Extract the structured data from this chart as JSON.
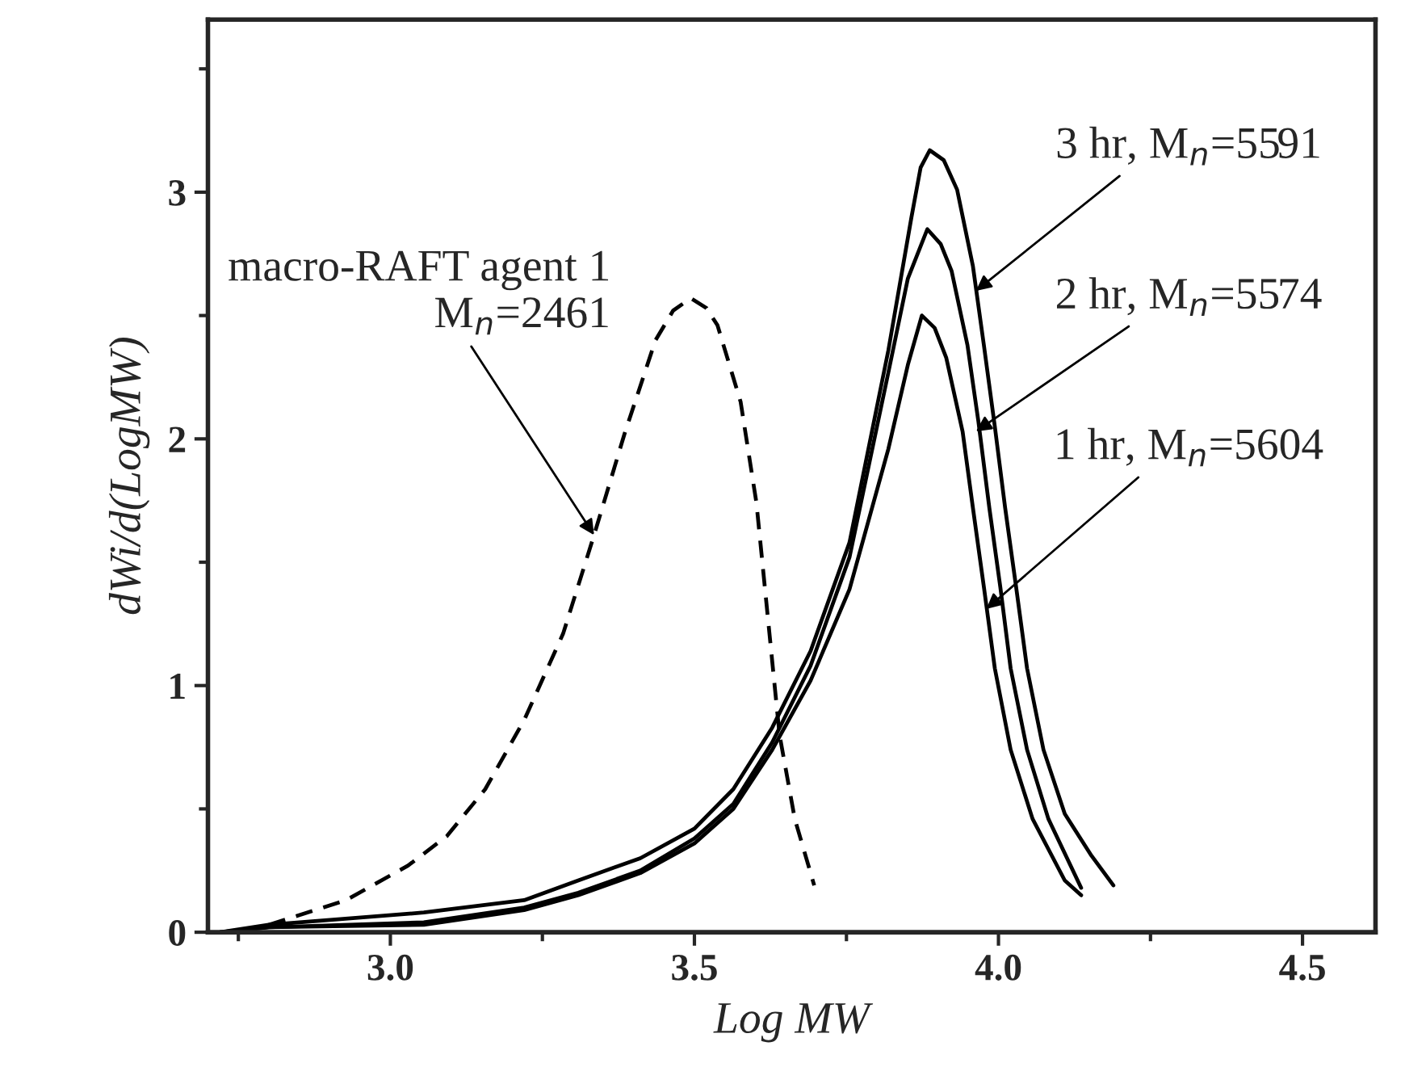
{
  "chart_data": {
    "type": "line",
    "xlabel": "Log MW",
    "ylabel": "dWi/d(LogMW)",
    "xlim": [
      2.7,
      4.62
    ],
    "ylim": [
      0,
      3.7
    ],
    "xticks": [
      {
        "value": 3,
        "label": "3.0"
      },
      {
        "value": 3.5,
        "label": "3.5"
      },
      {
        "value": 4,
        "label": "4.0"
      },
      {
        "value": 4.5,
        "label": "4.5"
      }
    ],
    "yticks": [
      0,
      1,
      2,
      3
    ],
    "grid": false,
    "legend": false,
    "marker": "none",
    "series": [
      {
        "color": "#000000",
        "line_style": "dashed",
        "x": [
          2.8,
          2.927,
          3.029,
          3.093,
          3.156,
          3.22,
          3.284,
          3.335,
          3.385,
          3.436,
          3.465,
          3.494,
          3.52,
          3.538,
          3.576,
          3.602,
          3.621,
          3.64,
          3.665,
          3.697
        ],
        "values": [
          0.03,
          0.13,
          0.27,
          0.39,
          0.58,
          0.86,
          1.21,
          1.61,
          2.02,
          2.4,
          2.52,
          2.57,
          2.53,
          2.46,
          2.15,
          1.74,
          1.27,
          0.8,
          0.46,
          0.19
        ]
      },
      {
        "color": "#000000",
        "line_style": "solid",
        "x": [
          2.72,
          2.8,
          3.055,
          3.22,
          3.309,
          3.411,
          3.5,
          3.564,
          3.628,
          3.691,
          3.755,
          3.819,
          3.857,
          3.872,
          3.887,
          3.91,
          3.932,
          3.958,
          3.976,
          3.994,
          4.011,
          4.029,
          4.047,
          4.074,
          4.109,
          4.153,
          4.189
        ],
        "values": [
          0.0,
          0.03,
          0.08,
          0.13,
          0.21,
          0.3,
          0.42,
          0.58,
          0.83,
          1.14,
          1.58,
          2.36,
          2.9,
          3.1,
          3.17,
          3.13,
          3.01,
          2.7,
          2.38,
          2.05,
          1.72,
          1.4,
          1.07,
          0.74,
          0.48,
          0.31,
          0.19
        ]
      },
      {
        "color": "#000000",
        "line_style": "solid",
        "x": [
          2.72,
          2.8,
          3.055,
          3.22,
          3.309,
          3.411,
          3.5,
          3.564,
          3.628,
          3.691,
          3.755,
          3.819,
          3.851,
          3.883,
          3.905,
          3.923,
          3.949,
          3.967,
          3.985,
          4.003,
          4.02,
          4.047,
          4.082,
          4.136
        ],
        "values": [
          0.0,
          0.02,
          0.04,
          0.1,
          0.16,
          0.25,
          0.38,
          0.52,
          0.77,
          1.08,
          1.52,
          2.27,
          2.65,
          2.85,
          2.79,
          2.68,
          2.38,
          2.07,
          1.72,
          1.4,
          1.07,
          0.74,
          0.46,
          0.18
        ]
      },
      {
        "color": "#000000",
        "line_style": "solid",
        "x": [
          2.72,
          2.8,
          3.055,
          3.22,
          3.309,
          3.411,
          3.5,
          3.564,
          3.628,
          3.691,
          3.755,
          3.819,
          3.851,
          3.874,
          3.895,
          3.914,
          3.941,
          3.958,
          3.976,
          3.994,
          4.02,
          4.056,
          4.109,
          4.136
        ],
        "values": [
          0.0,
          0.02,
          0.03,
          0.09,
          0.15,
          0.24,
          0.36,
          0.5,
          0.74,
          1.02,
          1.39,
          1.96,
          2.3,
          2.5,
          2.45,
          2.33,
          2.03,
          1.72,
          1.4,
          1.07,
          0.74,
          0.46,
          0.21,
          0.15
        ]
      }
    ],
    "annotations": [
      {
        "text": "macro-RAFT agent 1\nM$_{n}$=2461",
        "x": 3.335,
        "y": 1.61
      },
      {
        "text": "3 hr, M$_{n}$=5591",
        "x": 3.963,
        "y": 2.6
      },
      {
        "text": "2 hr, M$_{n}$=5574",
        "x": 3.963,
        "y": 2.03
      },
      {
        "text": "1 hr, M$_{n}$=5604",
        "x": 3.98,
        "y": 1.31
      }
    ]
  }
}
